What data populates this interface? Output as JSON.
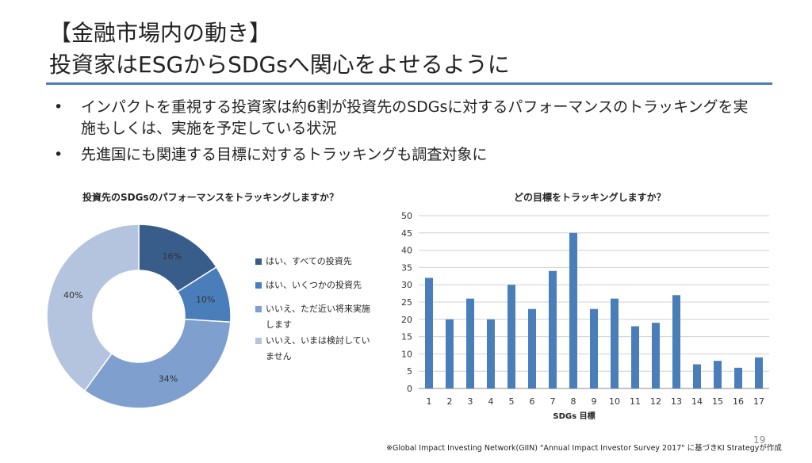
{
  "slide": {
    "title_line1": "【金融市場内の動き】",
    "title_line2": "投資家はESGからSDGsへ関心をよせるように",
    "bullet_marker": "•",
    "bullets": [
      "インパクトを重視する投資家は約6割が投資先のSDGsに対するパフォーマンスのトラッキングを実施もしくは、実施を予定している状況",
      "先進国にも関連する目標に対するトラッキングも調査対象に"
    ],
    "footnote": "※Global Impact Investing Network(GIIN) \"Annual Impact Investor Survey 2017\" に基づきKI Strategyが作成",
    "page_number": "19"
  },
  "colors": {
    "accent_rule": "#4e7bb4",
    "bar": "#4a7ebb",
    "pie": [
      "#385d8a",
      "#4a7ebb",
      "#7f9fcf",
      "#b4c4de"
    ]
  },
  "chart_data": [
    {
      "type": "pie",
      "donut": true,
      "title": "投資先のSDGsのパフォーマンスをトラッキングしますか？",
      "categories": [
        "はい、すべての投資先",
        "はい、いくつかの投資先",
        "いいえ、ただ近い将来実施します",
        "いいえ、いまは検討していません"
      ],
      "values": [
        16,
        10,
        34,
        40
      ],
      "data_labels": [
        "16%",
        "10%",
        "34%",
        "40%"
      ],
      "legend_position": "right"
    },
    {
      "type": "bar",
      "title": "どの目標をトラッキングしますか？",
      "xlabel": "SDGs 目標",
      "ylabel": "",
      "categories": [
        "1",
        "2",
        "3",
        "4",
        "5",
        "6",
        "7",
        "8",
        "9",
        "10",
        "11",
        "12",
        "13",
        "14",
        "15",
        "16",
        "17"
      ],
      "values": [
        32,
        20,
        26,
        20,
        30,
        23,
        34,
        45,
        23,
        26,
        18,
        19,
        27,
        7,
        8,
        6,
        9
      ],
      "ylim": [
        0,
        50
      ],
      "yticks": [
        "0",
        "5",
        "10",
        "15",
        "20",
        "25",
        "30",
        "35",
        "40",
        "45",
        "50"
      ],
      "grid": true
    }
  ]
}
